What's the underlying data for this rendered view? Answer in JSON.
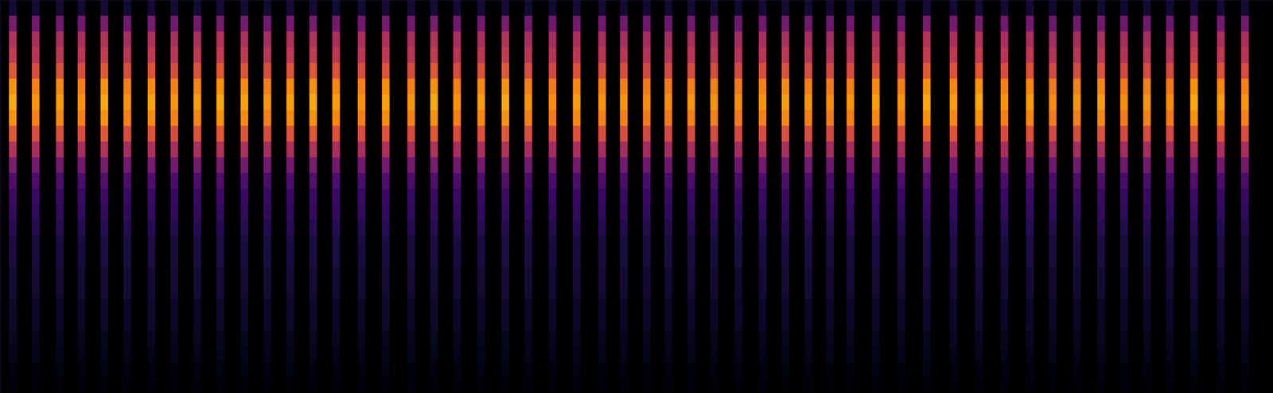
{
  "chart_data": {
    "type": "heatmap",
    "x": [
      0.01,
      0.028,
      0.047,
      0.064,
      0.082,
      0.1,
      0.119,
      0.137,
      0.155,
      0.173,
      0.192,
      0.21,
      0.228,
      0.246,
      0.264,
      0.284,
      0.303,
      0.323,
      0.341,
      0.359,
      0.378,
      0.397,
      0.415,
      0.434,
      0.453,
      0.473,
      0.49,
      0.508,
      0.525,
      0.543,
      0.561,
      0.58,
      0.599,
      0.617,
      0.635,
      0.652,
      0.668,
      0.688,
      0.708,
      0.728,
      0.749,
      0.769,
      0.789,
      0.809,
      0.827,
      0.846,
      0.865,
      0.883,
      0.901,
      0.919,
      0.938,
      0.959,
      0.978
    ],
    "values": [
      0.95,
      0.9,
      0.92,
      0.9,
      0.95,
      0.9,
      0.93,
      0.9,
      0.92,
      0.95,
      0.93,
      0.9,
      0.93,
      0.95,
      0.92,
      0.9,
      0.93,
      0.9,
      0.95,
      0.9,
      0.92,
      0.95,
      0.9,
      0.88,
      0.92,
      0.9,
      0.9,
      0.88,
      0.88,
      0.9,
      0.9,
      0.88,
      0.9,
      0.92,
      0.9,
      0.88,
      0.9,
      0.92,
      0.9,
      0.95,
      0.92,
      0.95,
      0.9,
      0.92,
      0.88,
      0.9,
      0.92,
      0.88,
      0.9,
      0.88,
      0.95,
      0.92,
      0.9
    ],
    "y_bins": [
      0,
      0.04,
      0.08,
      0.12,
      0.16,
      0.2,
      0.24,
      0.28,
      0.32,
      0.36,
      0.4,
      0.44,
      0.48,
      0.52,
      0.56,
      0.6,
      0.64,
      0.68,
      0.72,
      0.76,
      0.8,
      0.84,
      0.88,
      0.92,
      0.96,
      1
    ],
    "profile": [
      0.02,
      0.03,
      0.05,
      0.06,
      0.08,
      0.08,
      0.1,
      0.1,
      0.12,
      0.12,
      0.15,
      0.18,
      0.2,
      0.25,
      0.35,
      0.5,
      0.65,
      0.8,
      0.85,
      0.8,
      0.65,
      0.55,
      0.5,
      0.35,
      0.1
    ],
    "xlim": [
      0,
      1
    ],
    "ylim": [
      0,
      1
    ],
    "zlim": [
      0,
      1
    ],
    "color": "inferno",
    "tick_labels": false
  }
}
